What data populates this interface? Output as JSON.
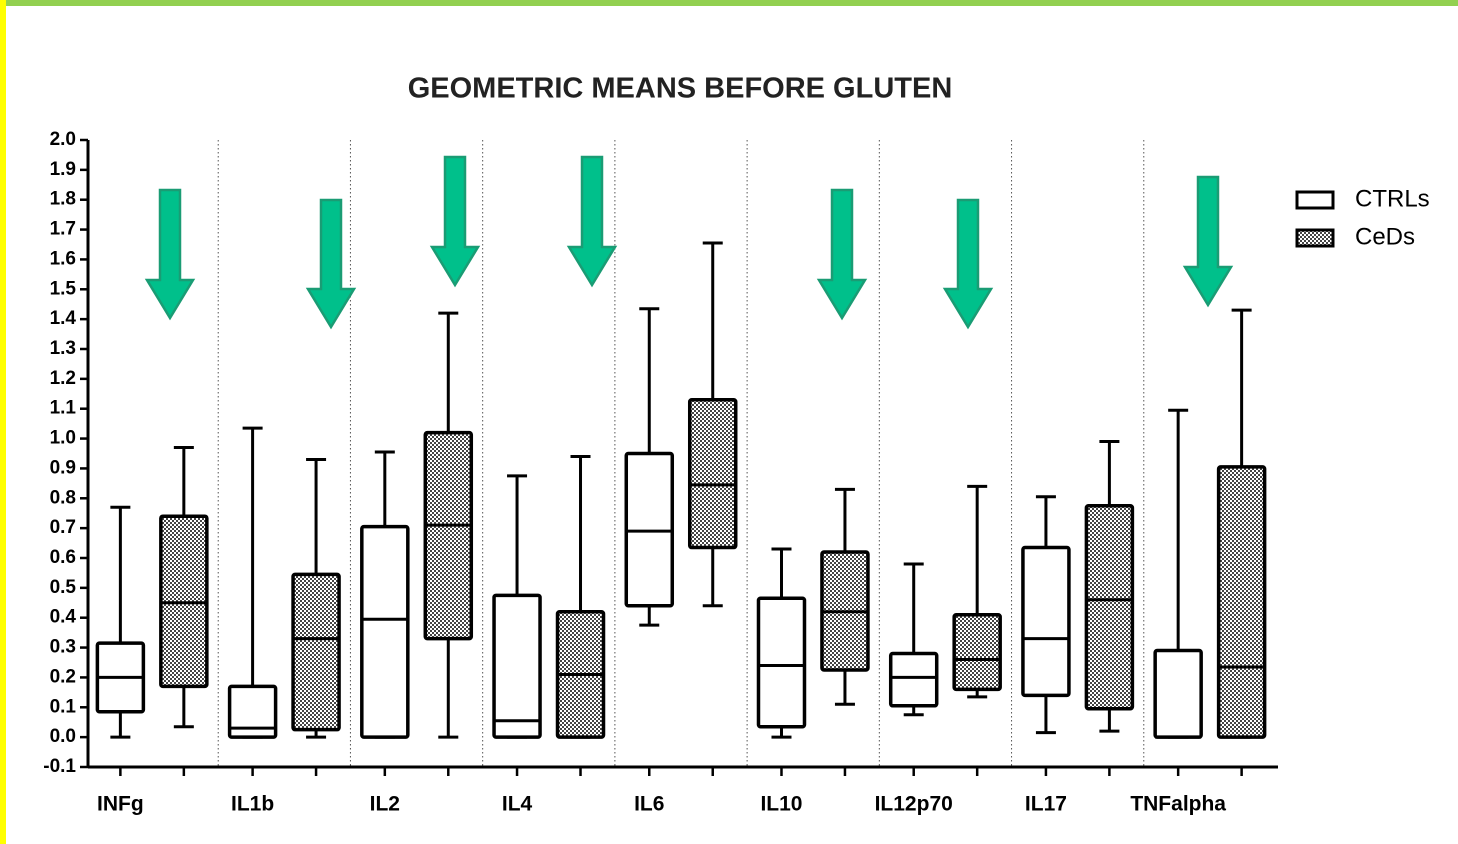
{
  "chart_data": {
    "type": "box",
    "title": "GEOMETRIC MEANS BEFORE GLUTEN",
    "categories": [
      "INFg",
      "IL1b",
      "IL2",
      "IL4",
      "IL6",
      "IL10",
      "IL12p70",
      "IL17",
      "TNFalpha"
    ],
    "series": [
      {
        "name": "CTRLs",
        "color": "#ffffff",
        "values": [
          [
            0.0,
            0.085,
            0.2,
            0.315,
            0.77
          ],
          [
            0.0,
            0.0,
            0.03,
            0.17,
            1.035
          ],
          [
            0.0,
            0.0,
            0.395,
            0.705,
            0.955
          ],
          [
            0.0,
            0.0,
            0.055,
            0.475,
            0.875
          ],
          [
            0.375,
            0.44,
            0.69,
            0.95,
            1.435
          ],
          [
            0.0,
            0.035,
            0.24,
            0.465,
            0.63
          ],
          [
            0.075,
            0.105,
            0.2,
            0.28,
            0.58
          ],
          [
            0.015,
            0.14,
            0.33,
            0.635,
            0.805
          ],
          [
            0.0,
            0.0,
            0.0,
            0.29,
            1.095
          ]
        ]
      },
      {
        "name": "CeDs",
        "color": "checkered",
        "values": [
          [
            0.035,
            0.17,
            0.45,
            0.74,
            0.97
          ],
          [
            0.0,
            0.025,
            0.33,
            0.545,
            0.93
          ],
          [
            0.0,
            0.33,
            0.71,
            1.02,
            1.42
          ],
          [
            0.0,
            0.0,
            0.21,
            0.42,
            0.94
          ],
          [
            0.44,
            0.635,
            0.845,
            1.13,
            1.655
          ],
          [
            0.11,
            0.225,
            0.42,
            0.62,
            0.83
          ],
          [
            0.135,
            0.16,
            0.26,
            0.41,
            0.84
          ],
          [
            0.02,
            0.095,
            0.46,
            0.775,
            0.99
          ],
          [
            0.0,
            0.0,
            0.235,
            0.905,
            1.43
          ]
        ]
      }
    ],
    "ylim": [
      -0.1,
      2.0
    ],
    "yticks": [
      -0.1,
      {
        "value": 0.0,
        "label": "0.0"
      },
      0.1,
      0.2,
      0.3,
      0.4,
      0.5,
      0.6,
      0.7,
      0.8,
      0.9,
      {
        "value": 1.0,
        "label": "1.0"
      },
      1.1,
      1.2,
      1.3,
      1.4,
      1.5,
      1.6,
      1.7,
      1.8,
      1.9,
      {
        "value": 2.0,
        "label": "2.0"
      }
    ],
    "legend": "top-right"
  }
}
